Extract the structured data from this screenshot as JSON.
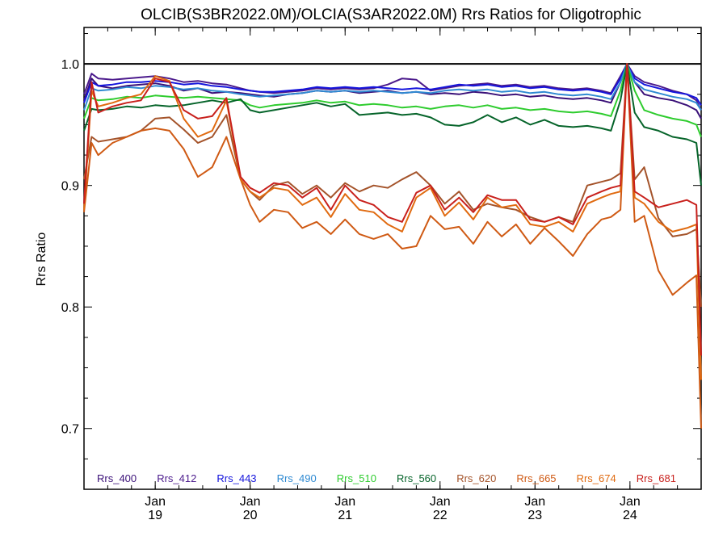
{
  "chart_data": {
    "type": "line",
    "title": "OLCIB(S3BR2022.0M)/OLCIA(S3AR2022.0M)  Rrs Ratios for Oligotrophic",
    "ylabel": "Rrs Ratio",
    "xlabel": "",
    "ylim": [
      0.65,
      1.03
    ],
    "xlim": [
      0,
      6.5
    ],
    "yticks": [
      {
        "value": 0.7,
        "label": "0.7"
      },
      {
        "value": 0.8,
        "label": "0.8"
      },
      {
        "value": 0.9,
        "label": "0.9"
      },
      {
        "value": 1.0,
        "label": "1.0"
      }
    ],
    "xticks": [
      {
        "value": 0.75,
        "month": "Jan",
        "year": "19"
      },
      {
        "value": 1.75,
        "month": "Jan",
        "year": "20"
      },
      {
        "value": 2.75,
        "month": "Jan",
        "year": "21"
      },
      {
        "value": 3.75,
        "month": "Jan",
        "year": "22"
      },
      {
        "value": 4.75,
        "month": "Jan",
        "year": "23"
      },
      {
        "value": 5.75,
        "month": "Jan",
        "year": "24"
      }
    ],
    "reference_line": 1.0,
    "x": [
      0.0,
      0.08,
      0.15,
      0.3,
      0.45,
      0.6,
      0.75,
      0.9,
      1.05,
      1.2,
      1.35,
      1.5,
      1.65,
      1.75,
      1.85,
      2.0,
      2.15,
      2.3,
      2.45,
      2.6,
      2.75,
      2.9,
      3.05,
      3.2,
      3.35,
      3.5,
      3.65,
      3.8,
      3.95,
      4.1,
      4.25,
      4.4,
      4.55,
      4.7,
      4.85,
      5.0,
      5.15,
      5.3,
      5.45,
      5.55,
      5.65,
      5.72,
      5.8,
      5.9,
      6.05,
      6.2,
      6.35,
      6.45,
      6.5
    ],
    "series": [
      {
        "name": "Rrs_400",
        "color": "#3a1078",
        "values": [
          0.97,
          0.988,
          0.982,
          0.98,
          0.982,
          0.983,
          0.984,
          0.982,
          0.978,
          0.98,
          0.976,
          0.977,
          0.976,
          0.975,
          0.974,
          0.973,
          0.975,
          0.976,
          0.978,
          0.977,
          0.978,
          0.976,
          0.977,
          0.978,
          0.976,
          0.977,
          0.975,
          0.976,
          0.975,
          0.977,
          0.976,
          0.974,
          0.975,
          0.973,
          0.974,
          0.972,
          0.971,
          0.972,
          0.97,
          0.968,
          0.985,
          1.0,
          0.985,
          0.975,
          0.972,
          0.97,
          0.966,
          0.962,
          0.955
        ]
      },
      {
        "name": "Rrs_412",
        "color": "#4b1a8c",
        "values": [
          0.975,
          0.992,
          0.988,
          0.987,
          0.988,
          0.989,
          0.99,
          0.988,
          0.985,
          0.986,
          0.984,
          0.983,
          0.98,
          0.978,
          0.977,
          0.976,
          0.977,
          0.978,
          0.98,
          0.979,
          0.98,
          0.979,
          0.98,
          0.983,
          0.988,
          0.987,
          0.978,
          0.98,
          0.982,
          0.983,
          0.984,
          0.982,
          0.983,
          0.981,
          0.982,
          0.98,
          0.979,
          0.98,
          0.978,
          0.976,
          0.99,
          1.0,
          0.99,
          0.985,
          0.982,
          0.978,
          0.975,
          0.97,
          0.962
        ]
      },
      {
        "name": "Rrs_443",
        "color": "#1414dc",
        "values": [
          0.968,
          0.985,
          0.982,
          0.983,
          0.985,
          0.985,
          0.986,
          0.985,
          0.983,
          0.984,
          0.982,
          0.981,
          0.979,
          0.978,
          0.977,
          0.977,
          0.978,
          0.979,
          0.981,
          0.98,
          0.981,
          0.98,
          0.981,
          0.98,
          0.979,
          0.98,
          0.979,
          0.981,
          0.983,
          0.982,
          0.983,
          0.981,
          0.982,
          0.98,
          0.981,
          0.979,
          0.978,
          0.979,
          0.977,
          0.975,
          0.988,
          1.0,
          0.988,
          0.983,
          0.98,
          0.977,
          0.975,
          0.972,
          0.966
        ]
      },
      {
        "name": "Rrs_490",
        "color": "#2f8ad2",
        "values": [
          0.962,
          0.98,
          0.978,
          0.979,
          0.981,
          0.98,
          0.982,
          0.981,
          0.979,
          0.98,
          0.978,
          0.977,
          0.975,
          0.974,
          0.973,
          0.974,
          0.975,
          0.976,
          0.978,
          0.977,
          0.978,
          0.977,
          0.978,
          0.977,
          0.976,
          0.977,
          0.976,
          0.978,
          0.979,
          0.978,
          0.979,
          0.977,
          0.978,
          0.976,
          0.977,
          0.975,
          0.974,
          0.975,
          0.973,
          0.971,
          0.985,
          1.0,
          0.985,
          0.979,
          0.976,
          0.973,
          0.971,
          0.968,
          0.962
        ]
      },
      {
        "name": "Rrs_510",
        "color": "#2ecc2e",
        "values": [
          0.955,
          0.972,
          0.97,
          0.971,
          0.973,
          0.972,
          0.974,
          0.973,
          0.972,
          0.973,
          0.972,
          0.971,
          0.97,
          0.966,
          0.964,
          0.966,
          0.967,
          0.968,
          0.97,
          0.968,
          0.969,
          0.966,
          0.967,
          0.966,
          0.964,
          0.965,
          0.963,
          0.965,
          0.966,
          0.964,
          0.966,
          0.963,
          0.964,
          0.962,
          0.963,
          0.961,
          0.96,
          0.961,
          0.959,
          0.957,
          0.978,
          1.0,
          0.978,
          0.962,
          0.958,
          0.955,
          0.953,
          0.95,
          0.94
        ]
      },
      {
        "name": "Rrs_560",
        "color": "#06642a",
        "values": [
          0.945,
          0.963,
          0.962,
          0.963,
          0.965,
          0.964,
          0.966,
          0.965,
          0.966,
          0.968,
          0.97,
          0.968,
          0.971,
          0.962,
          0.96,
          0.962,
          0.964,
          0.966,
          0.968,
          0.965,
          0.967,
          0.958,
          0.959,
          0.96,
          0.958,
          0.959,
          0.956,
          0.95,
          0.949,
          0.952,
          0.958,
          0.952,
          0.956,
          0.95,
          0.954,
          0.949,
          0.948,
          0.949,
          0.947,
          0.945,
          0.97,
          1.0,
          0.96,
          0.948,
          0.945,
          0.94,
          0.938,
          0.935,
          0.9
        ]
      },
      {
        "name": "Rrs_620",
        "color": "#a4532a",
        "values": [
          0.905,
          0.94,
          0.936,
          0.938,
          0.94,
          0.945,
          0.955,
          0.956,
          0.946,
          0.935,
          0.94,
          0.958,
          0.905,
          0.895,
          0.888,
          0.9,
          0.903,
          0.893,
          0.9,
          0.89,
          0.902,
          0.895,
          0.9,
          0.898,
          0.905,
          0.911,
          0.9,
          0.885,
          0.895,
          0.88,
          0.885,
          0.882,
          0.88,
          0.874,
          0.87,
          0.874,
          0.87,
          0.9,
          0.903,
          0.905,
          0.91,
          1.0,
          0.905,
          0.915,
          0.873,
          0.858,
          0.86,
          0.864,
          0.8
        ]
      },
      {
        "name": "Rrs_665",
        "color": "#cf5a14",
        "values": [
          0.878,
          0.935,
          0.925,
          0.935,
          0.94,
          0.945,
          0.947,
          0.945,
          0.93,
          0.907,
          0.915,
          0.94,
          0.905,
          0.884,
          0.87,
          0.88,
          0.878,
          0.865,
          0.87,
          0.86,
          0.872,
          0.86,
          0.856,
          0.86,
          0.848,
          0.85,
          0.875,
          0.864,
          0.866,
          0.852,
          0.87,
          0.858,
          0.868,
          0.852,
          0.865,
          0.854,
          0.842,
          0.86,
          0.872,
          0.874,
          0.88,
          1.0,
          0.87,
          0.875,
          0.83,
          0.81,
          0.82,
          0.826,
          0.7
        ]
      },
      {
        "name": "Rrs_674",
        "color": "#e06a10",
        "values": [
          0.88,
          0.978,
          0.965,
          0.968,
          0.972,
          0.975,
          0.99,
          0.986,
          0.955,
          0.94,
          0.945,
          0.97,
          0.905,
          0.895,
          0.89,
          0.898,
          0.896,
          0.884,
          0.89,
          0.874,
          0.893,
          0.88,
          0.878,
          0.868,
          0.862,
          0.89,
          0.898,
          0.875,
          0.886,
          0.872,
          0.89,
          0.882,
          0.884,
          0.868,
          0.866,
          0.87,
          0.862,
          0.885,
          0.89,
          0.893,
          0.895,
          1.0,
          0.89,
          0.885,
          0.87,
          0.862,
          0.865,
          0.868,
          0.74
        ]
      },
      {
        "name": "Rrs_681",
        "color": "#c8201c",
        "values": [
          0.885,
          0.985,
          0.96,
          0.965,
          0.968,
          0.97,
          0.988,
          0.985,
          0.962,
          0.955,
          0.957,
          0.972,
          0.907,
          0.898,
          0.894,
          0.902,
          0.9,
          0.89,
          0.898,
          0.88,
          0.9,
          0.888,
          0.884,
          0.874,
          0.87,
          0.894,
          0.9,
          0.88,
          0.89,
          0.878,
          0.892,
          0.888,
          0.888,
          0.872,
          0.87,
          0.874,
          0.868,
          0.89,
          0.895,
          0.898,
          0.9,
          1.0,
          0.895,
          0.89,
          0.882,
          0.885,
          0.888,
          0.884,
          0.76
        ]
      }
    ]
  }
}
